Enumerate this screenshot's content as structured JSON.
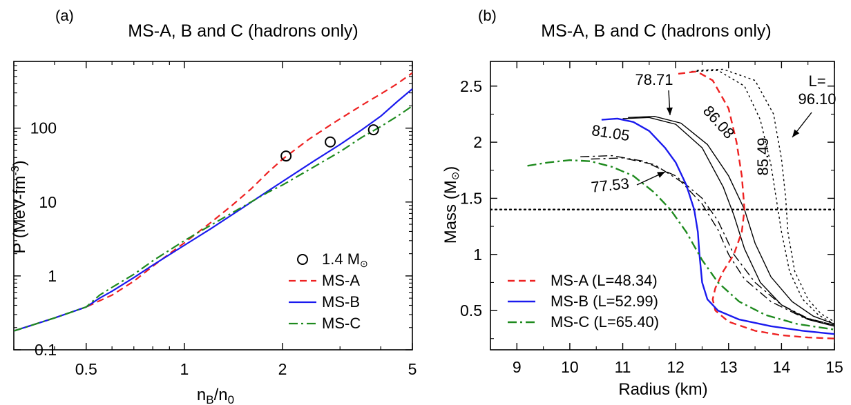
{
  "chart_data": [
    {
      "panel": "(a)",
      "type": "line",
      "title": "MS-A, B and C (hadrons only)",
      "xlabel": "n_B/n_0",
      "ylabel": "P (MeV-fm^-3)",
      "xscale": "log",
      "yscale": "log",
      "xlim": [
        0.3,
        5
      ],
      "ylim": [
        0.1,
        800
      ],
      "xticks": [
        0.5,
        1,
        2,
        5
      ],
      "xtick_labels": [
        "0.5",
        "1",
        "2",
        "5"
      ],
      "yticks": [
        0.1,
        1,
        10,
        100
      ],
      "ytick_labels": [
        "0.1",
        "1",
        "10",
        "100"
      ],
      "legend_position": "bottom-right",
      "series": [
        {
          "name": "MS-A",
          "color": "#ee2222",
          "dash": "dashed",
          "x": [
            0.3,
            0.4,
            0.5,
            0.6,
            0.7,
            0.8,
            0.9,
            1.0,
            1.2,
            1.4,
            1.6,
            1.8,
            2.0,
            2.4,
            2.8,
            3.2,
            3.6,
            4.0,
            4.5,
            5.0
          ],
          "y": [
            0.18,
            0.27,
            0.38,
            0.55,
            0.85,
            1.35,
            2.0,
            2.8,
            5.2,
            9.0,
            15,
            25,
            38,
            70,
            110,
            160,
            220,
            290,
            400,
            560
          ]
        },
        {
          "name": "MS-B",
          "color": "#1a1aee",
          "dash": "solid",
          "x": [
            0.3,
            0.4,
            0.5,
            0.55,
            0.6,
            0.7,
            0.8,
            1.0,
            1.2,
            1.5,
            1.8,
            2.0,
            2.5,
            3.0,
            3.5,
            4.0,
            4.5,
            5.0
          ],
          "y": [
            0.18,
            0.27,
            0.38,
            0.5,
            0.62,
            0.95,
            1.4,
            2.6,
            4.3,
            8.2,
            14,
            19,
            36,
            60,
            95,
            145,
            230,
            340
          ]
        },
        {
          "name": "MS-C",
          "color": "#1e8a1e",
          "dash": "dashdot",
          "x": [
            0.3,
            0.4,
            0.5,
            0.55,
            0.6,
            0.7,
            0.8,
            1.0,
            1.2,
            1.5,
            1.8,
            2.0,
            2.5,
            3.0,
            3.5,
            4.0,
            4.5,
            5.0
          ],
          "y": [
            0.18,
            0.27,
            0.38,
            0.55,
            0.7,
            1.05,
            1.6,
            3.0,
            4.8,
            8.5,
            13.5,
            17,
            30,
            48,
            75,
            105,
            145,
            200
          ]
        }
      ],
      "markers": {
        "name": "1.4 M_⊙",
        "marker": "open circle",
        "x": [
          2.05,
          2.8,
          3.8
        ],
        "y": [
          42,
          65,
          95
        ]
      }
    },
    {
      "panel": "(b)",
      "type": "line",
      "title": "MS-A, B and C (hadrons only)",
      "xlabel": "Radius (km)",
      "ylabel": "Mass (M_⊙)",
      "xlim": [
        8.5,
        15
      ],
      "ylim": [
        0.15,
        2.72
      ],
      "xticks": [
        9,
        10,
        11,
        12,
        13,
        14,
        15
      ],
      "yticks": [
        0.5,
        1,
        1.5,
        2,
        2.5
      ],
      "ytick_labels": [
        "0.5",
        "1",
        "1.5",
        "2",
        "2.5"
      ],
      "hline": {
        "y": 1.4,
        "style": "dotted"
      },
      "legend_position": "bottom-left",
      "series": [
        {
          "name": "MS-A (L=48.34)",
          "color": "#ee2222",
          "dash": "dashed",
          "x": [
            12.05,
            12.4,
            12.7,
            13.0,
            13.15,
            13.25,
            13.3,
            13.25,
            13.1,
            12.9,
            12.75,
            12.7,
            12.75,
            13.0,
            13.5,
            14.0,
            14.5,
            15.0
          ],
          "y": [
            2.61,
            2.63,
            2.55,
            2.3,
            2.0,
            1.7,
            1.4,
            1.2,
            1.0,
            0.85,
            0.7,
            0.6,
            0.5,
            0.4,
            0.32,
            0.28,
            0.26,
            0.25
          ]
        },
        {
          "name": "MS-B (L=52.99)",
          "color": "#1a1aee",
          "dash": "solid",
          "x": [
            10.6,
            10.9,
            11.2,
            11.5,
            11.8,
            12.0,
            12.2,
            12.35,
            12.42,
            12.45,
            12.5,
            12.6,
            12.8,
            13.2,
            13.8,
            14.4,
            15.0
          ],
          "y": [
            2.2,
            2.21,
            2.18,
            2.1,
            1.95,
            1.82,
            1.62,
            1.4,
            1.2,
            1.0,
            0.75,
            0.6,
            0.5,
            0.42,
            0.36,
            0.32,
            0.29
          ]
        },
        {
          "name": "MS-C (L=65.40)",
          "color": "#1e8a1e",
          "dash": "dashdot",
          "x": [
            9.2,
            9.6,
            10.0,
            10.4,
            10.8,
            11.2,
            11.6,
            11.9,
            12.2,
            12.5,
            12.8,
            13.2,
            13.7,
            14.3,
            15.0
          ],
          "y": [
            1.79,
            1.82,
            1.84,
            1.83,
            1.78,
            1.7,
            1.55,
            1.4,
            1.2,
            0.95,
            0.75,
            0.58,
            0.46,
            0.38,
            0.33
          ]
        }
      ],
      "extra_curves": [
        {
          "label": "81.05",
          "color": "#000000",
          "dash": "dashdot",
          "x": [
            10.2,
            10.8,
            11.4,
            12.0,
            12.5,
            12.8,
            13.1,
            13.5,
            14.0,
            14.5,
            15.0
          ],
          "y": [
            1.87,
            1.88,
            1.83,
            1.7,
            1.5,
            1.3,
            1.0,
            0.75,
            0.55,
            0.43,
            0.37
          ]
        },
        {
          "label": "77.53",
          "color": "#000000",
          "dash": "dashdot",
          "x": [
            10.4,
            11.0,
            11.6,
            12.1,
            12.5,
            12.8,
            13.0,
            13.3,
            13.8,
            14.4,
            15.0
          ],
          "y": [
            1.85,
            1.86,
            1.8,
            1.65,
            1.45,
            1.22,
            1.0,
            0.78,
            0.58,
            0.44,
            0.37
          ]
        },
        {
          "label": "78.71",
          "color": "#000000",
          "dash": "solid",
          "x": [
            11.0,
            11.5,
            12.0,
            12.5,
            12.9,
            13.1,
            13.3,
            13.6,
            14.0,
            14.5,
            15.0
          ],
          "y": [
            2.21,
            2.22,
            2.16,
            1.95,
            1.6,
            1.35,
            1.05,
            0.75,
            0.55,
            0.42,
            0.36
          ]
        },
        {
          "label": "86.08",
          "color": "#000000",
          "dash": "solid",
          "x": [
            11.1,
            11.6,
            12.1,
            12.6,
            13.0,
            13.3,
            13.5,
            13.8,
            14.2,
            14.6,
            15.0
          ],
          "y": [
            2.22,
            2.23,
            2.17,
            1.98,
            1.7,
            1.4,
            1.1,
            0.8,
            0.58,
            0.45,
            0.38
          ]
        },
        {
          "label": "85.49",
          "color": "#000000",
          "dash": "dotted",
          "x": [
            12.3,
            12.8,
            13.3,
            13.6,
            13.8,
            13.9,
            14.0,
            14.15,
            14.4,
            14.7,
            15.0
          ],
          "y": [
            2.63,
            2.64,
            2.5,
            2.2,
            1.8,
            1.5,
            1.2,
            0.85,
            0.6,
            0.46,
            0.38
          ]
        },
        {
          "label": "96.10",
          "color": "#000000",
          "dash": "dotted",
          "x": [
            12.4,
            12.9,
            13.5,
            13.85,
            14.0,
            14.08,
            14.12,
            14.25,
            14.5,
            14.75,
            15.0
          ],
          "y": [
            2.64,
            2.65,
            2.55,
            2.25,
            1.85,
            1.5,
            1.2,
            0.85,
            0.6,
            0.47,
            0.4
          ]
        }
      ],
      "annotations": [
        "78.71",
        "86.08",
        "81.05",
        "77.53",
        "85.49",
        "L=",
        "96.10"
      ]
    }
  ]
}
